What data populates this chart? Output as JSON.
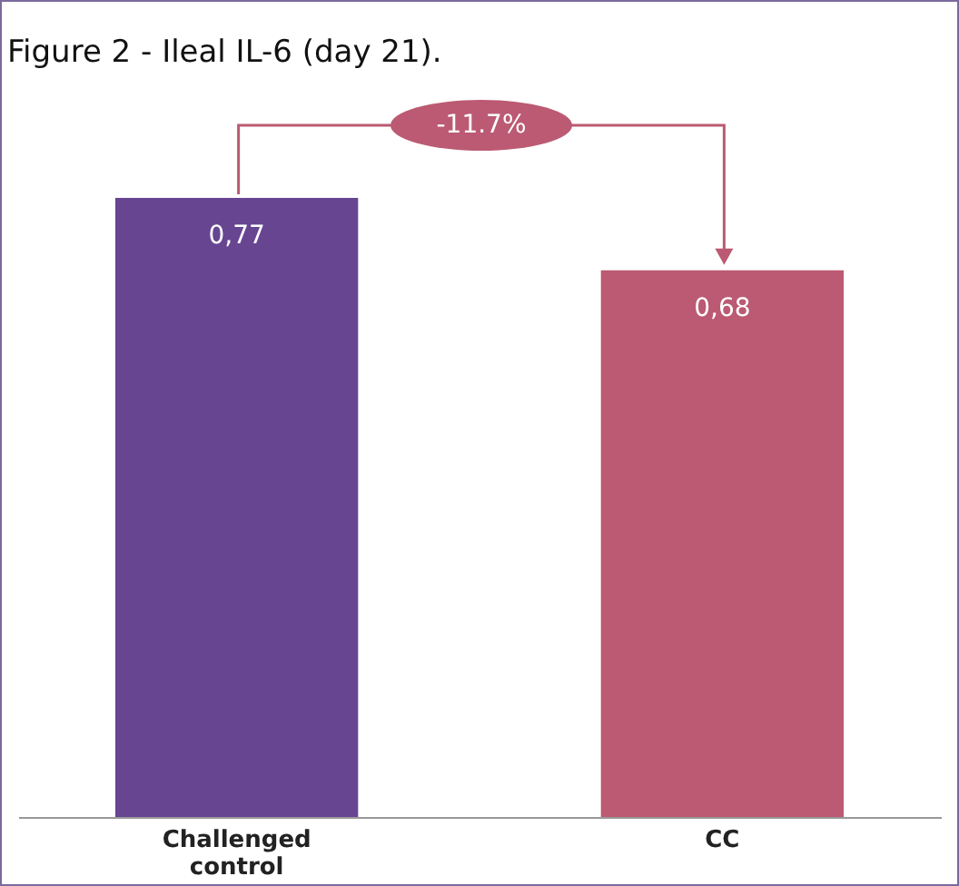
{
  "chart_data": {
    "type": "bar",
    "title": "Figure 2 - Ileal IL-6 (day 21).",
    "categories": [
      "Challenged control",
      "CC"
    ],
    "values": [
      0.77,
      0.68
    ],
    "colors": [
      "#674591",
      "#bb5a72"
    ],
    "value_labels": [
      "0,77",
      "0,68"
    ],
    "annotations": [
      "-11.7%"
    ]
  }
}
